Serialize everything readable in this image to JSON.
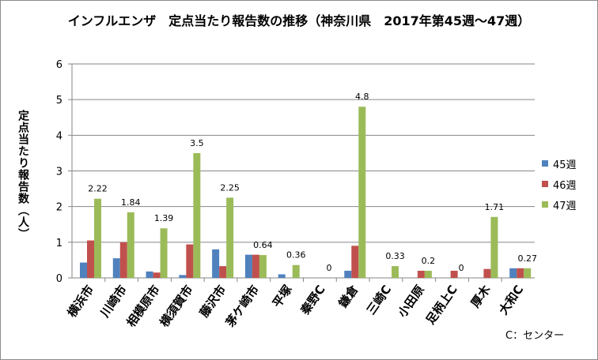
{
  "chart_data": {
    "type": "bar",
    "title": "インフルエンザ　定点当たり報告数の推移（神奈川県　2017年第45週～47週）",
    "ylabel": "定点当たり報告数（人）",
    "xlabel": "",
    "ylim": [
      0,
      6
    ],
    "yticks": [
      0,
      1,
      2,
      3,
      4,
      5,
      6
    ],
    "grid": true,
    "legend_position": "right",
    "footnote": "C：センター",
    "categories": [
      "横浜市",
      "川崎市",
      "相模原市",
      "横須賀市",
      "藤沢市",
      "茅ケ崎市",
      "平塚",
      "秦野C",
      "鎌倉",
      "三崎C",
      "小田原",
      "足柄上C",
      "厚木",
      "大和C"
    ],
    "series": [
      {
        "name": "45週",
        "color": "#4f81bd",
        "values": [
          0.43,
          0.55,
          0.18,
          0.08,
          0.8,
          0.65,
          0.1,
          0,
          0.2,
          0,
          0,
          0,
          0,
          0.27
        ]
      },
      {
        "name": "46週",
        "color": "#c0504d",
        "values": [
          1.05,
          1.0,
          0.15,
          0.94,
          0.33,
          0.65,
          0,
          0,
          0.9,
          0,
          0.2,
          0.2,
          0.25,
          0.27
        ]
      },
      {
        "name": "47週",
        "color": "#9bbb59",
        "values": [
          2.22,
          1.84,
          1.39,
          3.5,
          2.25,
          0.64,
          0.36,
          0,
          4.8,
          0.33,
          0.2,
          0,
          1.71,
          0.27
        ]
      }
    ],
    "data_labels": [
      "2.22",
      "1.84",
      "1.39",
      "3.5",
      "2.25",
      "0.64",
      "0.36",
      "0",
      "4.8",
      "0.33",
      "0.2",
      "0",
      "1.71",
      "0.27"
    ]
  }
}
